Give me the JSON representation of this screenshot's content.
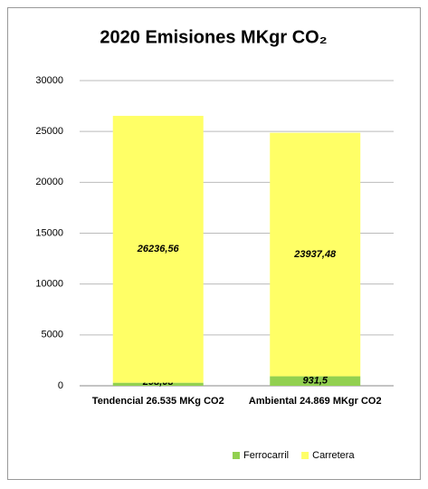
{
  "chart_data": {
    "type": "stacked_bar",
    "title": "2020 Emisiones MKgr CO₂",
    "categories": [
      "Tendencial 26.535 MKg CO2",
      "Ambiental  24.869 MKgr CO2"
    ],
    "series": [
      {
        "name": "Ferrocarril",
        "color": "#92d050",
        "values": [
          298.08,
          931.5
        ],
        "value_labels": [
          "298,08",
          "931,5"
        ]
      },
      {
        "name": "Carretera",
        "color": "#ffff66",
        "values": [
          26236.56,
          23937.48
        ],
        "value_labels": [
          "26236,56",
          "23937,48"
        ]
      }
    ],
    "ylim": [
      0,
      30000
    ],
    "yticks": [
      0,
      5000,
      10000,
      15000,
      20000,
      25000,
      30000
    ],
    "grid": true,
    "legend": "bottom"
  }
}
